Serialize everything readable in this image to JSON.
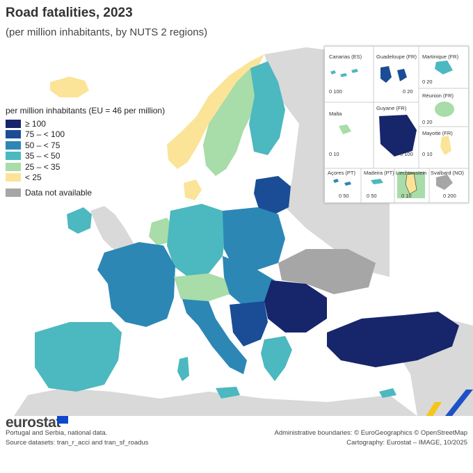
{
  "title": "Road fatalities, 2023",
  "subtitle": "(per million inhabitants, by NUTS 2 regions)",
  "legend": {
    "heading": "per million inhabitants (EU = 46 per million)",
    "items": [
      {
        "label": "≥ 100",
        "color": "#17256b"
      },
      {
        "label": "75 – < 100",
        "color": "#1a4d96"
      },
      {
        "label": "50 – < 75",
        "color": "#2c87b5"
      },
      {
        "label": "35 – < 50",
        "color": "#4cb8bf"
      },
      {
        "label": "25 – < 35",
        "color": "#a8dca8"
      },
      {
        "label": "< 25",
        "color": "#fbe498"
      }
    ],
    "na": {
      "label": "Data not available",
      "color": "#a6a6a6"
    }
  },
  "insets": [
    {
      "label": "Canarias (ES)",
      "scale": "0  100"
    },
    {
      "label": "Guadeloupe (FR)",
      "scale": "0  20"
    },
    {
      "label": "Martinique (FR)",
      "scale": "0  20"
    },
    {
      "label": "Réunion (FR)",
      "scale": "0  20"
    },
    {
      "label": "Malta",
      "scale": "0  10"
    },
    {
      "label": "Guyane (FR)",
      "scale": "0  100"
    },
    {
      "label": "Mayotte (FR)",
      "scale": "0  10"
    },
    {
      "label": "Açores (PT)",
      "scale": "0  50"
    },
    {
      "label": "Madeira (PT)",
      "scale": "0  50"
    },
    {
      "label": "Liechtenstein",
      "scale": "0  10"
    },
    {
      "label": "Svalbard (NO)",
      "scale": "0  200"
    }
  ],
  "footer": {
    "logo": "eurostat",
    "note1": "Portugal and Serbia, national data.",
    "note2": "Source datasets: tran_r_acci and tran_sf_roadus",
    "credit1": "Administrative boundaries: © EuroGeographics © OpenStreetMap",
    "credit2": "Cartography: Eurostat – IMAGE, 10/2025"
  }
}
